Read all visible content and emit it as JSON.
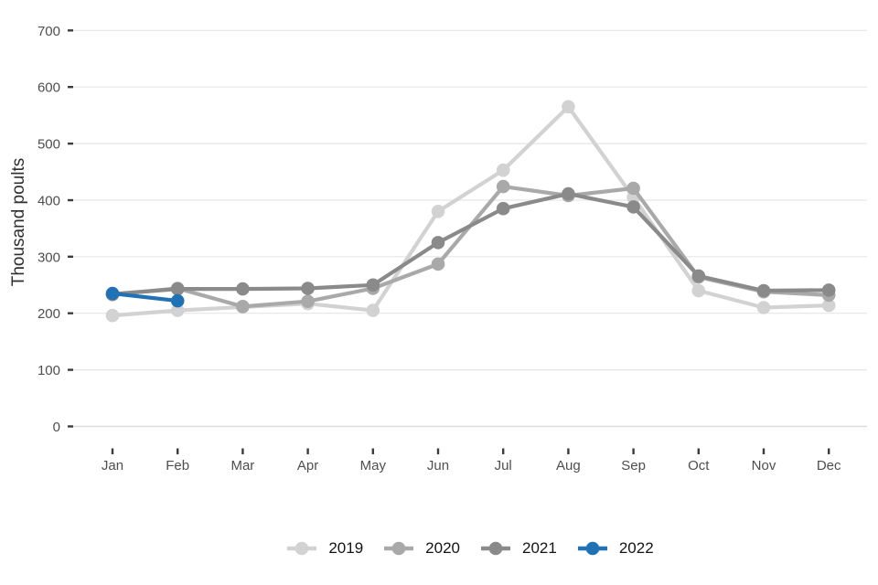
{
  "chart": {
    "background": "#ffffff",
    "text_color": "#4e4e4e"
  },
  "chart_data": {
    "type": "line",
    "title": "",
    "xlabel": "",
    "ylabel": "Thousand poults",
    "categories": [
      "Jan",
      "Feb",
      "Mar",
      "Apr",
      "May",
      "Jun",
      "Jul",
      "Aug",
      "Sep",
      "Oct",
      "Nov",
      "Dec"
    ],
    "series": [
      {
        "name": "2019",
        "color": "#d2d2d2",
        "values": [
          196,
          205,
          211,
          217,
          205,
          380,
          453,
          565,
          405,
          240,
          210,
          214
        ]
      },
      {
        "name": "2020",
        "color": "#a9a9a9",
        "values": [
          233,
          244,
          212,
          221,
          244,
          287,
          424,
          408,
          421,
          264,
          238,
          232
        ]
      },
      {
        "name": "2021",
        "color": "#8a8a8a",
        "values": [
          234,
          243,
          243,
          244,
          250,
          325,
          385,
          411,
          388,
          266,
          240,
          241
        ]
      },
      {
        "name": "2022",
        "color": "#2171b5",
        "values": [
          235,
          222,
          null,
          null,
          null,
          null,
          null,
          null,
          null,
          null,
          null,
          null
        ]
      }
    ],
    "ylim": [
      0,
      700
    ],
    "yticks": [
      0,
      100,
      200,
      300,
      400,
      500,
      600,
      700
    ],
    "grid": true,
    "legend_position": "bottom"
  }
}
